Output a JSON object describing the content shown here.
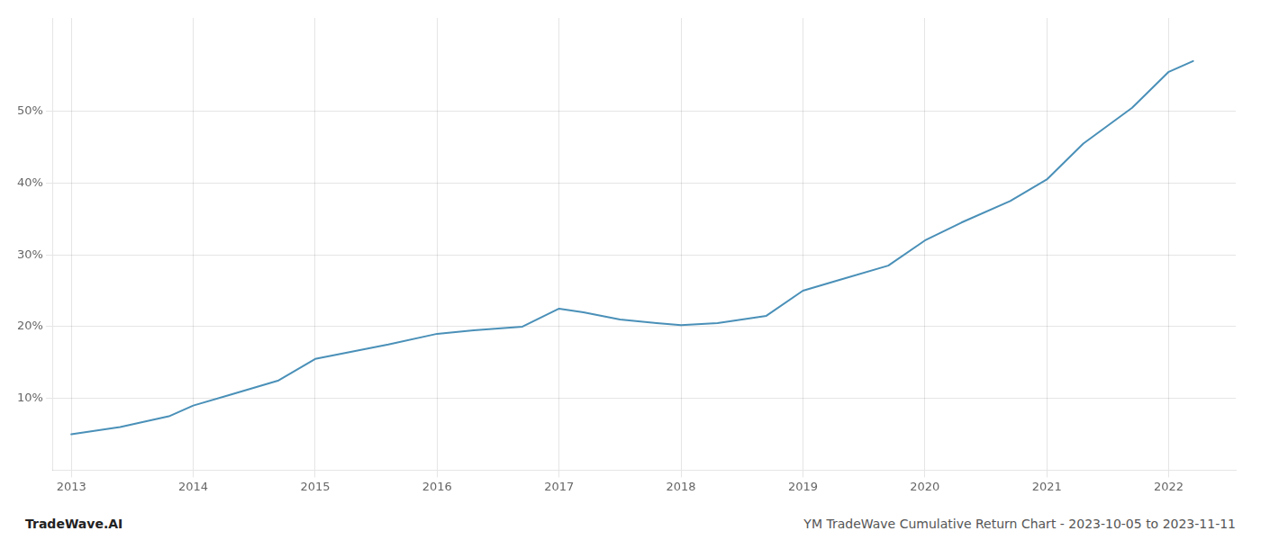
{
  "chart_data": {
    "type": "line",
    "x": [
      2013,
      2013.4,
      2013.8,
      2014,
      2014.3,
      2014.7,
      2015,
      2015.3,
      2015.6,
      2016,
      2016.3,
      2016.7,
      2017,
      2017.2,
      2017.5,
      2017.8,
      2018,
      2018.3,
      2018.7,
      2019,
      2019.3,
      2019.7,
      2020,
      2020.3,
      2020.7,
      2021,
      2021.3,
      2021.7,
      2022,
      2022.2
    ],
    "values": [
      5.0,
      6.0,
      7.5,
      9.0,
      10.5,
      12.5,
      15.5,
      16.5,
      17.5,
      19.0,
      19.5,
      20.0,
      22.5,
      22.0,
      21.0,
      20.5,
      20.2,
      20.5,
      21.5,
      25.0,
      26.5,
      28.5,
      32.0,
      34.5,
      37.5,
      40.5,
      45.5,
      50.5,
      55.5,
      57.0
    ],
    "color": "#4a90b8",
    "xlim": [
      2012.85,
      2022.55
    ],
    "xticks": [
      2013,
      2014,
      2015,
      2016,
      2017,
      2018,
      2019,
      2020,
      2021,
      2022
    ],
    "ylim": [
      0,
      63
    ],
    "yticks": [
      {
        "value": 10,
        "label": "10%"
      },
      {
        "value": 20,
        "label": "20%"
      },
      {
        "value": 30,
        "label": "30%"
      },
      {
        "value": 40,
        "label": "40%"
      },
      {
        "value": 50,
        "label": "50%"
      }
    ],
    "grid": true,
    "annotations": [
      "TradeWave.AI",
      "YM TradeWave Cumulative Return Chart - 2023-10-05 to 2023-11-11"
    ]
  }
}
